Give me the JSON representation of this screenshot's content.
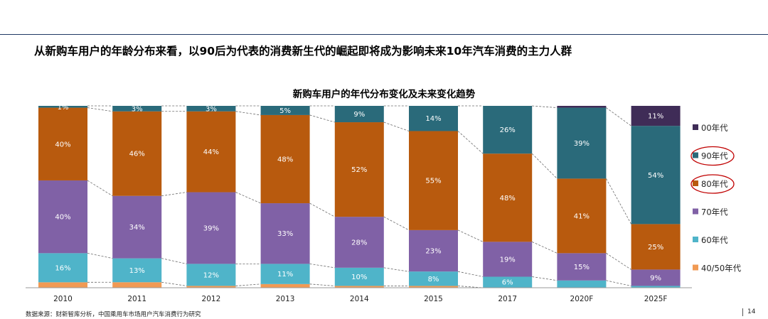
{
  "headline": "从新购车用户的年龄分布来看，以90后为代表的消费新生代的崛起即将成为影响未来10年汽车消费的主力人群",
  "chart_data": {
    "type": "bar",
    "stacked": true,
    "percent_stacked": true,
    "title": "新购车用户的年代分布变化及未来变化趋势",
    "xlabel": "",
    "ylabel": "",
    "ylim": [
      0,
      100
    ],
    "categories": [
      "2010",
      "2011",
      "2012",
      "2013",
      "2014",
      "2015",
      "2017",
      "2020F",
      "2025F"
    ],
    "series": [
      {
        "name": "40/50年代",
        "color": "#F19A54",
        "values": [
          3,
          3,
          1,
          2,
          1,
          1,
          0,
          0,
          0
        ],
        "labels": [
          "",
          "",
          "",
          "",
          "",
          "",
          "",
          "",
          ""
        ]
      },
      {
        "name": "60年代",
        "color": "#4FB4C9",
        "values": [
          16,
          13,
          12,
          11,
          10,
          8,
          6,
          4,
          1
        ],
        "labels": [
          "16%",
          "13%",
          "12%",
          "11%",
          "10%",
          "8%",
          "6%",
          "",
          ""
        ]
      },
      {
        "name": "70年代",
        "color": "#8061A6",
        "values": [
          40,
          34,
          39,
          33,
          28,
          23,
          19,
          15,
          9
        ],
        "labels": [
          "40%",
          "34%",
          "39%",
          "33%",
          "28%",
          "23%",
          "19%",
          "15%",
          "9%"
        ]
      },
      {
        "name": "80年代",
        "color": "#B85A0E",
        "values": [
          40,
          46,
          44,
          48,
          52,
          55,
          48,
          41,
          25
        ],
        "labels": [
          "40%",
          "46%",
          "44%",
          "48%",
          "52%",
          "55%",
          "48%",
          "41%",
          "25%"
        ]
      },
      {
        "name": "90年代",
        "color": "#2A6A7A",
        "values": [
          1,
          3,
          3,
          5,
          9,
          14,
          26,
          39,
          54
        ],
        "labels": [
          "1%",
          "3%",
          "3%",
          "5%",
          "9%",
          "14%",
          "26%",
          "39%",
          "54%"
        ]
      },
      {
        "name": "00年代",
        "color": "#3F2C57",
        "values": [
          0,
          0,
          0,
          0,
          0,
          0,
          0,
          1,
          11
        ],
        "labels": [
          "",
          "",
          "",
          "",
          "",
          "",
          "",
          "",
          "11%"
        ]
      }
    ],
    "legend": {
      "position": "right",
      "order": [
        "00年代",
        "90年代",
        "80年代",
        "70年代",
        "60年代",
        "40/50年代"
      ],
      "highlighted": [
        "90年代",
        "80年代"
      ],
      "highlight_color": "#C00000"
    },
    "connector_lines": "dashed",
    "grid": false
  },
  "source": "数据来源：财新智库分析，中国乘用车市场用户汽车消费行为研究",
  "page_number": "14"
}
